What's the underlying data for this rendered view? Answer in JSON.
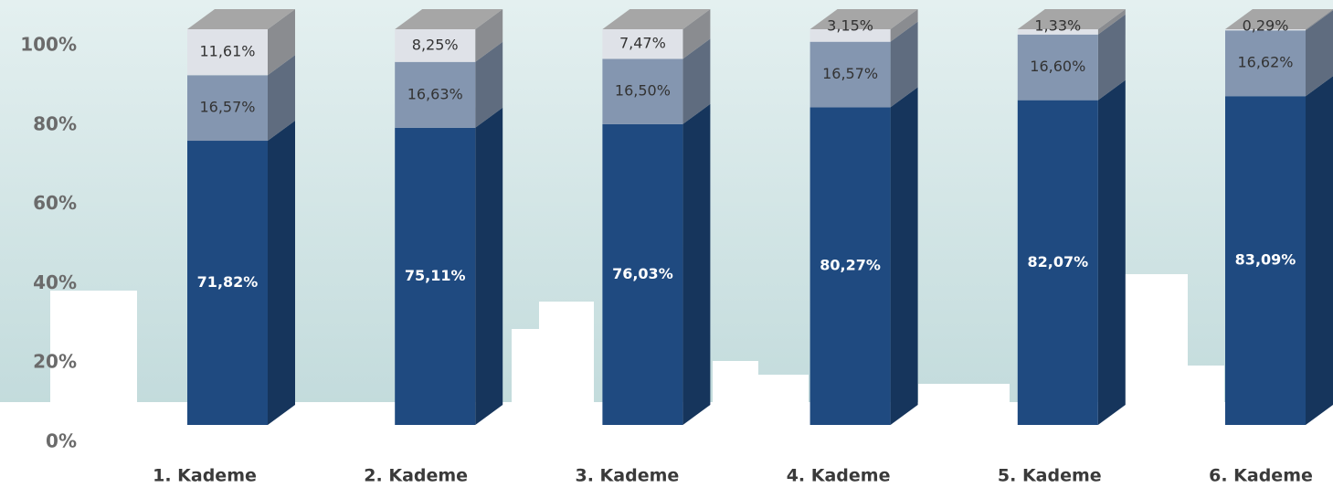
{
  "chart_data": {
    "type": "bar",
    "stacked": true,
    "categories": [
      "1. Kademe",
      "2. Kademe",
      "3. Kademe",
      "4. Kademe",
      "5. Kademe",
      "6. Kademe"
    ],
    "series": [
      {
        "color": "#1f4a80",
        "values": [
          71.82,
          75.11,
          76.03,
          80.27,
          82.07,
          83.09
        ],
        "value_labels": [
          "71,82%",
          "75,11%",
          "76,03%",
          "80,27%",
          "82,07%",
          "83,09%"
        ]
      },
      {
        "color": "#8496b0",
        "values": [
          16.57,
          16.63,
          16.5,
          16.57,
          16.6,
          16.62
        ],
        "value_labels": [
          "16,57%",
          "16,63%",
          "16,50%",
          "16,57%",
          "16,60%",
          "16,62%"
        ]
      },
      {
        "color": "#dfe2e8",
        "values": [
          11.61,
          8.25,
          7.47,
          3.15,
          1.33,
          0.29
        ],
        "value_labels": [
          "11,61%",
          "8,25%",
          "7,47%",
          "3,15%",
          "1,33%",
          "0,29%"
        ]
      }
    ],
    "ylim": [
      0,
      100
    ],
    "yticks": [
      {
        "value": 0,
        "label": "0%"
      },
      {
        "value": 20,
        "label": "20%"
      },
      {
        "value": 40,
        "label": "40%"
      },
      {
        "value": 60,
        "label": "60%"
      },
      {
        "value": 80,
        "label": "80%"
      },
      {
        "value": 100,
        "label": "100%"
      }
    ]
  }
}
